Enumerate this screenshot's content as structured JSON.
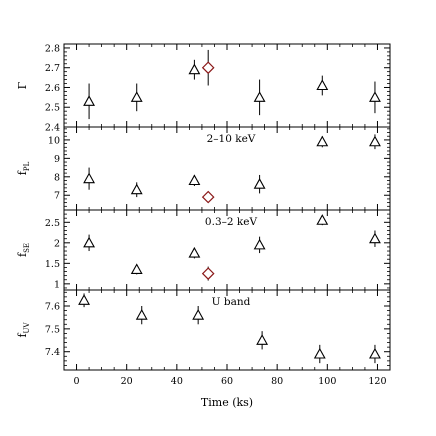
{
  "chart_data": {
    "type": "scatter",
    "xlabel": "Time (ks)",
    "xlim": [
      -5,
      125
    ],
    "xticks": [
      0,
      20,
      40,
      60,
      80,
      100,
      120
    ],
    "panels": [
      {
        "ylabel": "Γ",
        "ylabel_main": "Γ",
        "ylabel_sub": "",
        "annotation": "",
        "ylim": [
          2.4,
          2.82
        ],
        "yticks": [
          2.4,
          2.5,
          2.6,
          2.7,
          2.8
        ],
        "tick_labels": [
          "2.4",
          "2.5",
          "2.6",
          "2.7",
          "2.8"
        ],
        "series": [
          {
            "marker": "triangle",
            "color": "#000000",
            "points": [
              {
                "x": 5,
                "y": 2.53,
                "err": 0.09
              },
              {
                "x": 24,
                "y": 2.55,
                "err": 0.07
              },
              {
                "x": 47,
                "y": 2.69,
                "err": 0.05
              },
              {
                "x": 73,
                "y": 2.55,
                "err": 0.09
              },
              {
                "x": 98,
                "y": 2.61,
                "err": 0.05
              },
              {
                "x": 119,
                "y": 2.55,
                "err": 0.08
              }
            ]
          },
          {
            "marker": "diamond",
            "color": "#8b1a1a",
            "points": [
              {
                "x": 52.5,
                "y": 2.7,
                "err": 0.09
              }
            ]
          }
        ]
      },
      {
        "ylabel": "f_PL",
        "ylabel_main": "f",
        "ylabel_sub": "PL",
        "annotation": "2–10 keV",
        "ylim": [
          6.2,
          10.7
        ],
        "yticks": [
          7,
          8,
          9,
          10
        ],
        "tick_labels": [
          "7",
          "8",
          "9",
          "10"
        ],
        "series": [
          {
            "marker": "triangle",
            "color": "#000000",
            "points": [
              {
                "x": 5,
                "y": 7.9,
                "err": 0.6
              },
              {
                "x": 24,
                "y": 7.3,
                "err": 0.4
              },
              {
                "x": 47,
                "y": 7.8,
                "err": 0.3
              },
              {
                "x": 73,
                "y": 7.6,
                "err": 0.5
              },
              {
                "x": 98,
                "y": 9.9,
                "err": 0.3
              },
              {
                "x": 119,
                "y": 9.9,
                "err": 0.4
              }
            ]
          },
          {
            "marker": "diamond",
            "color": "#8b1a1a",
            "points": [
              {
                "x": 52.5,
                "y": 6.9,
                "err": 0.3
              }
            ]
          }
        ]
      },
      {
        "ylabel": "f_SE",
        "ylabel_main": "f",
        "ylabel_sub": "SE",
        "annotation": "0.3–2 keV",
        "ylim": [
          0.85,
          2.8
        ],
        "yticks": [
          1,
          1.5,
          2,
          2.5
        ],
        "tick_labels": [
          "1",
          "1.5",
          "2",
          "2.5"
        ],
        "series": [
          {
            "marker": "triangle",
            "color": "#000000",
            "points": [
              {
                "x": 5,
                "y": 2.0,
                "err": 0.2
              },
              {
                "x": 24,
                "y": 1.35,
                "err": 0.12
              },
              {
                "x": 47,
                "y": 1.75,
                "err": 0.13
              },
              {
                "x": 73,
                "y": 1.95,
                "err": 0.2
              },
              {
                "x": 98,
                "y": 2.55,
                "err": 0.12
              },
              {
                "x": 119,
                "y": 2.1,
                "err": 0.2
              }
            ]
          },
          {
            "marker": "diamond",
            "color": "#8b1a1a",
            "points": [
              {
                "x": 52.5,
                "y": 1.25,
                "err": 0.17
              }
            ]
          }
        ]
      },
      {
        "ylabel": "f_UV",
        "ylabel_main": "f",
        "ylabel_sub": "UV",
        "annotation": "U band",
        "ylim": [
          7.32,
          7.67
        ],
        "yticks": [
          7.4,
          7.5,
          7.6
        ],
        "tick_labels": [
          "7.4",
          "7.5",
          "7.6"
        ],
        "series": [
          {
            "marker": "triangle",
            "color": "#000000",
            "points": [
              {
                "x": 3,
                "y": 7.625,
                "err": 0.03
              },
              {
                "x": 26,
                "y": 7.56,
                "err": 0.04
              },
              {
                "x": 48.5,
                "y": 7.56,
                "err": 0.04
              },
              {
                "x": 74,
                "y": 7.45,
                "err": 0.04
              },
              {
                "x": 97,
                "y": 7.39,
                "err": 0.04
              },
              {
                "x": 119,
                "y": 7.39,
                "err": 0.04
              }
            ]
          }
        ]
      }
    ]
  }
}
